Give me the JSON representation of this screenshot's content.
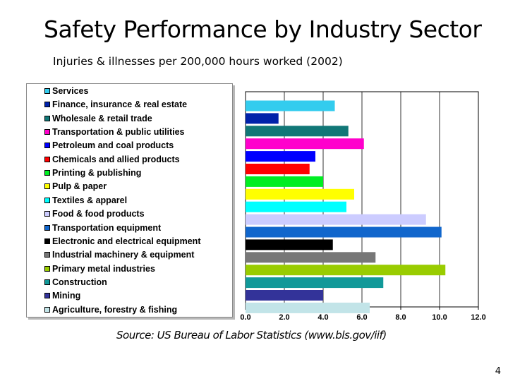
{
  "slide": {
    "page_number": "4",
    "source": "Source: US Bureau of Labor Statistics (www.bls.gov/iif)"
  },
  "chart_data": {
    "type": "bar",
    "orientation": "horizontal",
    "title": "Safety Performance by Industry Sector",
    "subtitle": "Injuries & illnesses per 200,000 hours worked (2002)",
    "xlim": [
      0,
      12
    ],
    "xticks": [
      "0.0",
      "2.0",
      "4.0",
      "6.0",
      "8.0",
      "10.0",
      "12.0"
    ],
    "grid": true,
    "legend_position": "left",
    "series": [
      {
        "name": "Services",
        "value": 4.6,
        "color": "#33ccee"
      },
      {
        "name": "Finance, insurance & real estate",
        "value": 1.7,
        "color": "#0022aa"
      },
      {
        "name": "Wholesale & retail trade",
        "value": 5.3,
        "color": "#117777"
      },
      {
        "name": "Transportation & public utilities",
        "value": 6.1,
        "color": "#ff00cc"
      },
      {
        "name": "Petroleum and coal products",
        "value": 3.6,
        "color": "#0000ff"
      },
      {
        "name": "Chemicals and allied products",
        "value": 3.3,
        "color": "#ff0000"
      },
      {
        "name": "Printing & publishing",
        "value": 4.0,
        "color": "#00ee22"
      },
      {
        "name": "Pulp & paper",
        "value": 5.6,
        "color": "#ffff00"
      },
      {
        "name": "Textiles & apparel",
        "value": 5.2,
        "color": "#00ffff"
      },
      {
        "name": "Food & food products",
        "value": 9.3,
        "color": "#ccccff"
      },
      {
        "name": "Transportation equipment",
        "value": 10.1,
        "color": "#1166cc"
      },
      {
        "name": "Electronic and electrical equipment",
        "value": 4.5,
        "color": "#000000"
      },
      {
        "name": "Industrial machinery & equipment",
        "value": 6.7,
        "color": "#777777"
      },
      {
        "name": "Primary metal industries",
        "value": 10.3,
        "color": "#99cc00"
      },
      {
        "name": "Construction",
        "value": 7.1,
        "color": "#119999"
      },
      {
        "name": "Mining",
        "value": 4.0,
        "color": "#333399"
      },
      {
        "name": "Agriculture, forestry & fishing",
        "value": 6.4,
        "color": "#c2e4e8"
      }
    ]
  }
}
